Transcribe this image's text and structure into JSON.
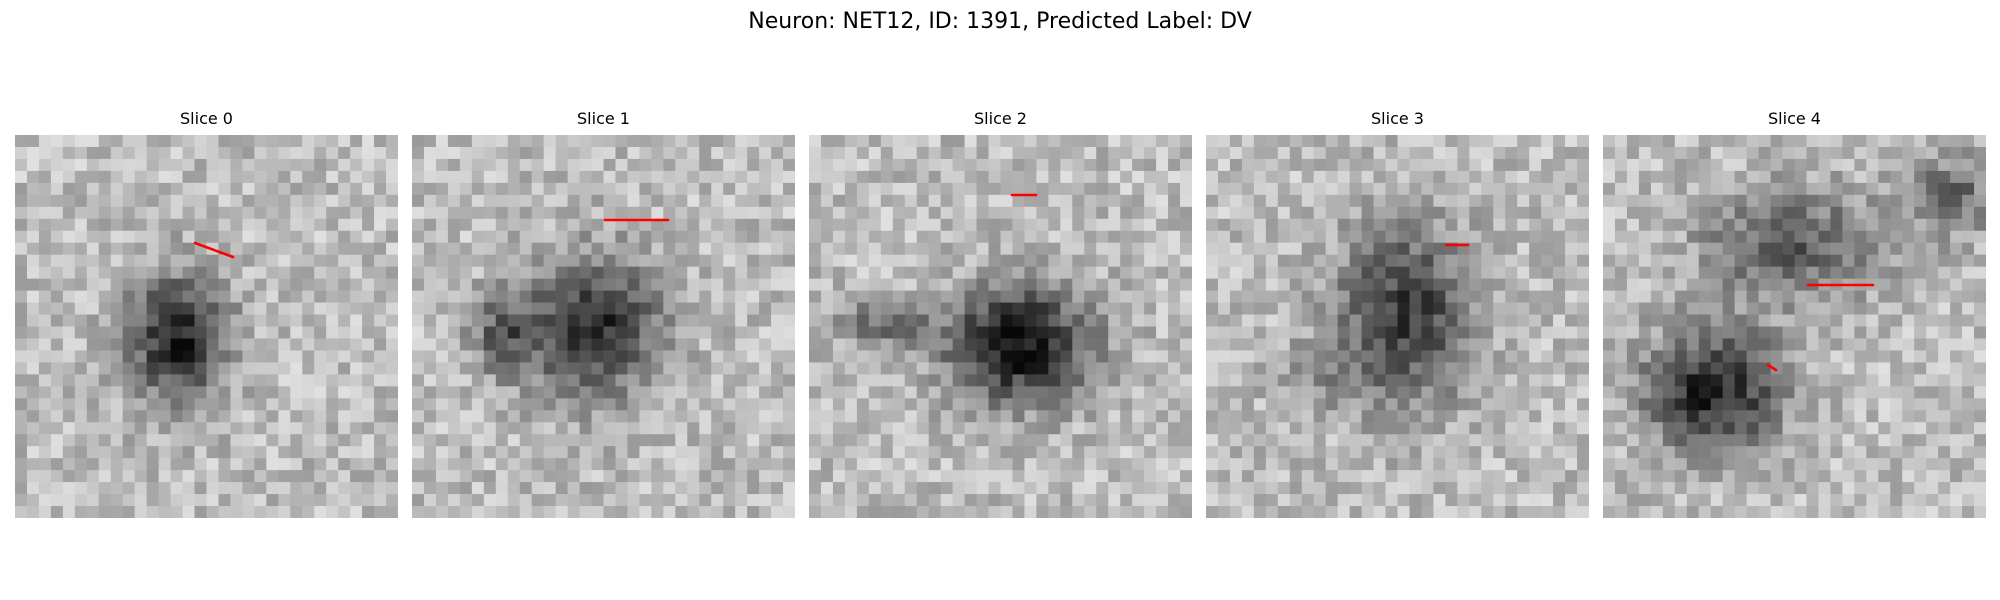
{
  "figure": {
    "title": "Neuron: NET12, ID: 1391, Predicted Label: DV"
  },
  "panels": [
    {
      "title": "Slice 0"
    },
    {
      "title": "Slice 1"
    },
    {
      "title": "Slice 2"
    },
    {
      "title": "Slice 3"
    },
    {
      "title": "Slice 4"
    }
  ],
  "colors": {
    "contour": "#ff0000",
    "background": "#ffffff"
  }
}
